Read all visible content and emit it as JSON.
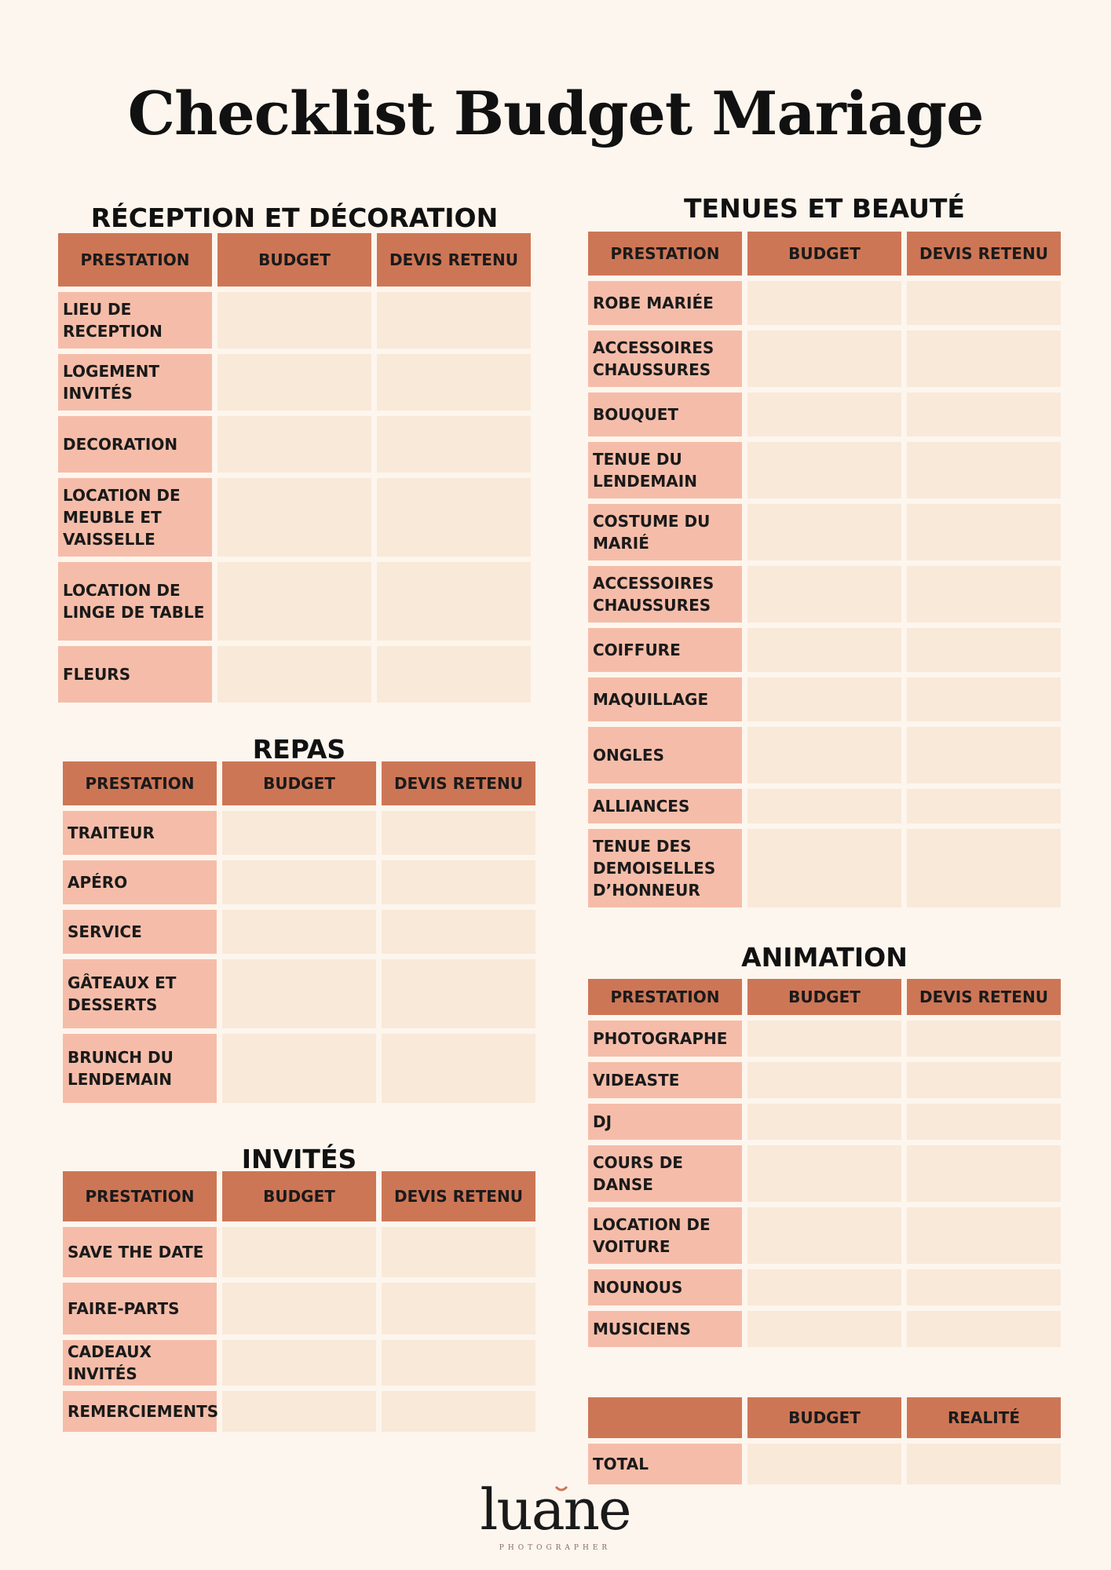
{
  "title": "Checklist Budget Mariage",
  "colors": {
    "background": "#fdf6ee",
    "header": "#cd7656",
    "label": "#f5bda9",
    "cell": "#f9e9d9"
  },
  "sections": {
    "reception": {
      "title": "RÉCEPTION ET DÉCORATION",
      "headers": [
        "PRESTATION",
        "BUDGET",
        "DEVIS RETENU"
      ],
      "rows": [
        "LIEU DE RECEPTION",
        "LOGEMENT INVITÉS",
        "DECORATION",
        "LOCATION DE MEUBLE ET VAISSELLE",
        "LOCATION DE LINGE DE TABLE",
        "FLEURS"
      ]
    },
    "repas": {
      "title": "REPAS",
      "headers": [
        "PRESTATION",
        "BUDGET",
        "DEVIS RETENU"
      ],
      "rows": [
        "TRAITEUR",
        "APÉRO",
        "SERVICE",
        "GÂTEAUX ET DESSERTS",
        "BRUNCH DU LENDEMAIN"
      ]
    },
    "invites": {
      "title": "INVITÉS",
      "headers": [
        "PRESTATION",
        "BUDGET",
        "DEVIS RETENU"
      ],
      "rows": [
        "SAVE THE DATE",
        "FAIRE-PARTS",
        "CADEAUX INVITÉS",
        "REMERCIEMENTS"
      ]
    },
    "tenues": {
      "title": "TENUES ET BEAUTÉ",
      "headers": [
        "PRESTATION",
        "BUDGET",
        "DEVIS RETENU"
      ],
      "rows": [
        "ROBE MARIÉE",
        "ACCESSOIRES CHAUSSURES",
        "BOUQUET",
        "TENUE DU LENDEMAIN",
        "COSTUME DU MARIÉ",
        "ACCESSOIRES CHAUSSURES",
        "COIFFURE",
        "MAQUILLAGE",
        "ONGLES",
        "ALLIANCES",
        "TENUE DES DEMOISELLES D’HONNEUR"
      ]
    },
    "animation": {
      "title": "ANIMATION",
      "headers": [
        "PRESTATION",
        "BUDGET",
        "DEVIS RETENU"
      ],
      "rows": [
        "PHOTOGRAPHE",
        "VIDEASTE",
        "DJ",
        "COURS DE DANSE",
        "LOCATION DE VOITURE",
        "NOUNOUS",
        "MUSICIENS"
      ]
    },
    "total": {
      "title": "",
      "headers": [
        "",
        "BUDGET",
        "REALITÉ"
      ],
      "rows": [
        "TOTAL"
      ]
    }
  },
  "logo": {
    "name": "luane",
    "tagline": "PHOTOGRAPHER"
  }
}
